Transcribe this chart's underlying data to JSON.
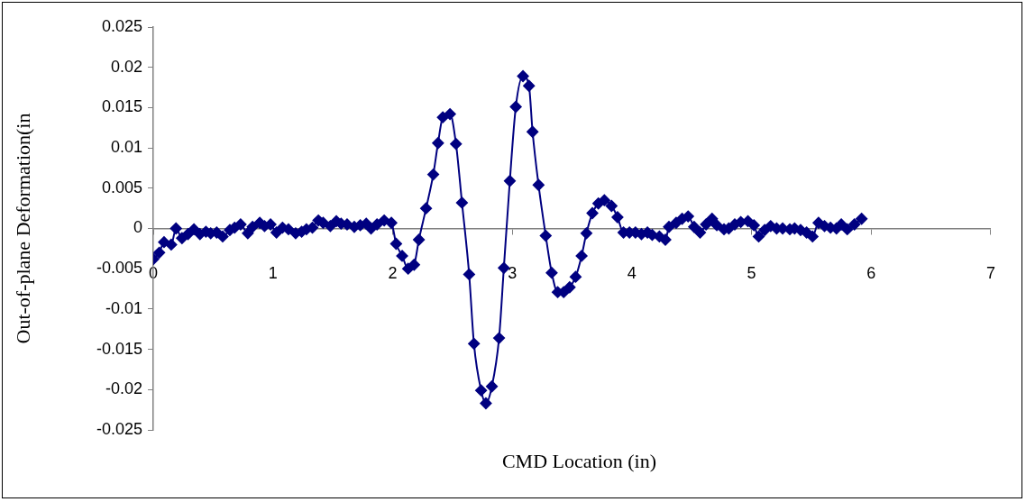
{
  "chart_data": {
    "type": "line",
    "xlabel": "CMD Location (in)",
    "ylabel": "Out-of-plane Deformation(in",
    "marker": "diamond",
    "line_style": "solid",
    "legend": false,
    "xlim": [
      0,
      7
    ],
    "xticks": [
      0,
      1,
      2,
      3,
      4,
      5,
      6,
      7
    ],
    "ylim": [
      -0.025,
      0.025
    ],
    "yticks": [
      -0.025,
      -0.02,
      -0.015,
      -0.01,
      -0.005,
      0,
      0.005,
      0.01,
      0.015,
      0.02,
      0.025
    ],
    "series": [
      {
        "color": "#000080",
        "x": [
          0,
          0.05,
          0.09,
          0.15,
          0.19,
          0.24,
          0.29,
          0.34,
          0.39,
          0.44,
          0.48,
          0.53,
          0.58,
          0.64,
          0.68,
          0.73,
          0.79,
          0.83,
          0.89,
          0.93,
          0.98,
          1.03,
          1.08,
          1.13,
          1.19,
          1.24,
          1.28,
          1.33,
          1.38,
          1.42,
          1.48,
          1.53,
          1.57,
          1.62,
          1.68,
          1.73,
          1.78,
          1.82,
          1.87,
          1.93,
          1.99,
          2.03,
          2.08,
          2.13,
          2.18,
          2.22,
          2.28,
          2.34,
          2.38,
          2.42,
          2.48,
          2.53,
          2.58,
          2.64,
          2.68,
          2.74,
          2.78,
          2.83,
          2.89,
          2.93,
          2.98,
          3.03,
          3.09,
          3.14,
          3.17,
          3.22,
          3.28,
          3.33,
          3.38,
          3.43,
          3.48,
          3.53,
          3.58,
          3.62,
          3.67,
          3.72,
          3.77,
          3.83,
          3.88,
          3.93,
          3.98,
          4.03,
          4.08,
          4.13,
          4.17,
          4.23,
          4.28,
          4.31,
          4.37,
          4.42,
          4.47,
          4.52,
          4.57,
          4.62,
          4.67,
          4.71,
          4.77,
          4.81,
          4.86,
          4.91,
          4.97,
          5.02,
          5.06,
          5.11,
          5.16,
          5.21,
          5.26,
          5.32,
          5.36,
          5.41,
          5.46,
          5.51,
          5.56,
          5.61,
          5.66,
          5.71,
          5.75,
          5.8,
          5.86,
          5.92
        ],
        "values": [
          -0.0038,
          -0.003,
          -0.0017,
          -0.002,
          0,
          -0.0012,
          -0.0007,
          -0.0001,
          -0.0007,
          -0.0004,
          -0.0006,
          -0.0005,
          -0.001,
          -0.0002,
          0.0001,
          0.0005,
          -0.0006,
          0.0002,
          0.0007,
          0.0003,
          0.0005,
          -0.0005,
          0.0001,
          -0.0001,
          -0.0006,
          -0.0004,
          -0.0001,
          0.0001,
          0.001,
          0.0007,
          0.0003,
          0.0009,
          0.0006,
          0.0005,
          0.0002,
          0.0004,
          0.0006,
          0,
          0.0005,
          0.001,
          0.0007,
          -0.0019,
          -0.0034,
          -0.005,
          -0.0045,
          -0.0014,
          0.0025,
          0.0067,
          0.0106,
          0.0138,
          0.0142,
          0.0105,
          0.0032,
          -0.0057,
          -0.0143,
          -0.0201,
          -0.0217,
          -0.0196,
          -0.0136,
          -0.0049,
          0.0059,
          0.0151,
          0.0189,
          0.0177,
          0.012,
          0.0054,
          -0.0009,
          -0.0055,
          -0.0079,
          -0.0079,
          -0.0073,
          -0.006,
          -0.0034,
          -0.0006,
          0.0019,
          0.0031,
          0.0035,
          0.0028,
          0.0014,
          -0.0005,
          -0.0005,
          -0.0005,
          -0.0007,
          -0.0005,
          -0.0008,
          -0.001,
          -0.0014,
          0.0002,
          0.0007,
          0.0012,
          0.0015,
          0.0002,
          -0.0005,
          0.0005,
          0.0012,
          0.0004,
          -0.0001,
          0,
          0.0005,
          0.0008,
          0.0009,
          0.0004,
          -0.001,
          -0.0002,
          0.0003,
          0,
          0,
          -0.0001,
          0,
          -0.0002,
          -0.0005,
          -0.001,
          0.0007,
          0.0003,
          0.0001,
          0,
          0.0005,
          -0.0001,
          0.0005,
          0.0012
        ]
      }
    ]
  }
}
